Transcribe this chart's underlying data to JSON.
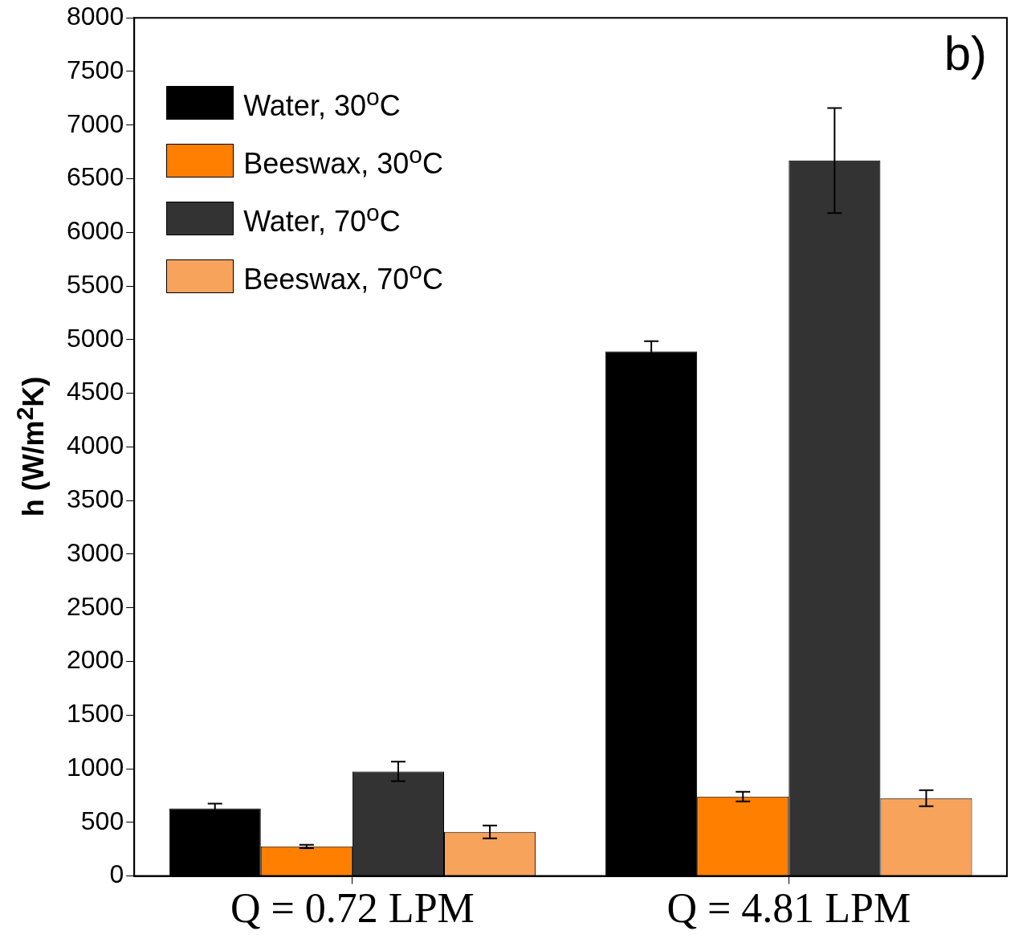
{
  "chart_data": {
    "type": "bar",
    "ylabel": "h (W/m$^{2}$K)",
    "annotations": [
      "b)"
    ],
    "categories": [
      "Q = 0.72 LPM",
      "Q = 4.81 LPM"
    ],
    "series": [
      {
        "name": "Water, 30$^{o}$C",
        "color": "#000000",
        "values": [
          630,
          4890
        ],
        "errors": [
          45,
          95
        ]
      },
      {
        "name": "Beeswax, 30$^{o}$C",
        "color": "#ff7f00",
        "values": [
          275,
          740
        ],
        "errors": [
          15,
          45
        ]
      },
      {
        "name": "Water, 70$^{o}$C",
        "color": "#333333",
        "values": [
          975,
          6670
        ],
        "errors": [
          90,
          490
        ]
      },
      {
        "name": "Beeswax, 70$^{o}$C",
        "color": "#f7a35c",
        "values": [
          410,
          725
        ],
        "errors": [
          60,
          75
        ]
      }
    ],
    "ylim": [
      0,
      8000
    ],
    "yticks": [
      0,
      500,
      1000,
      1500,
      2000,
      2500,
      3000,
      3500,
      4000,
      4500,
      5000,
      5500,
      6000,
      6500,
      7000,
      7500,
      8000
    ],
    "legend": "top left"
  }
}
